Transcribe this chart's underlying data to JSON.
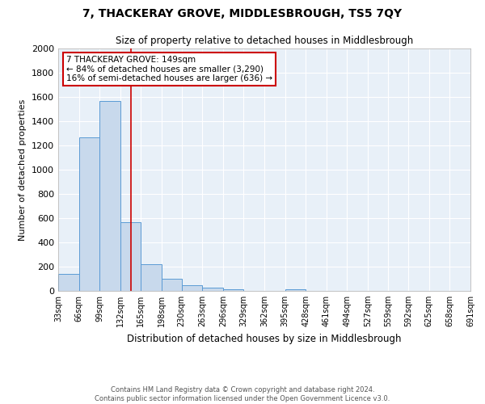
{
  "title": "7, THACKERAY GROVE, MIDDLESBROUGH, TS5 7QY",
  "subtitle": "Size of property relative to detached houses in Middlesbrough",
  "xlabel": "Distribution of detached houses by size in Middlesbrough",
  "ylabel": "Number of detached properties",
  "footnote1": "Contains HM Land Registry data © Crown copyright and database right 2024.",
  "footnote2": "Contains public sector information licensed under the Open Government Licence v3.0.",
  "bin_edges": [
    33,
    66,
    99,
    132,
    165,
    198,
    230,
    263,
    296,
    329,
    362,
    395,
    428,
    461,
    494,
    527,
    559,
    592,
    625,
    658,
    691
  ],
  "bar_heights": [
    140,
    1270,
    1570,
    570,
    220,
    100,
    50,
    25,
    15,
    0,
    0,
    15,
    0,
    0,
    0,
    0,
    0,
    0,
    0,
    0
  ],
  "bar_color": "#c8d9ec",
  "bar_edgecolor": "#5b9bd5",
  "vline_x": 149,
  "vline_color": "#cc0000",
  "annotation_line1": "7 THACKERAY GROVE: 149sqm",
  "annotation_line2": "← 84% of detached houses are smaller (3,290)",
  "annotation_line3": "16% of semi-detached houses are larger (636) →",
  "annotation_box_color": "white",
  "annotation_box_edgecolor": "#cc0000",
  "ylim": [
    0,
    2000
  ],
  "yticks": [
    0,
    200,
    400,
    600,
    800,
    1000,
    1200,
    1400,
    1600,
    1800,
    2000
  ],
  "bg_color": "#e8f0f8",
  "grid_color": "white",
  "tick_labels": [
    "33sqm",
    "66sqm",
    "99sqm",
    "132sqm",
    "165sqm",
    "198sqm",
    "230sqm",
    "263sqm",
    "296sqm",
    "329sqm",
    "362sqm",
    "395sqm",
    "428sqm",
    "461sqm",
    "494sqm",
    "527sqm",
    "559sqm",
    "592sqm",
    "625sqm",
    "658sqm",
    "691sqm"
  ]
}
